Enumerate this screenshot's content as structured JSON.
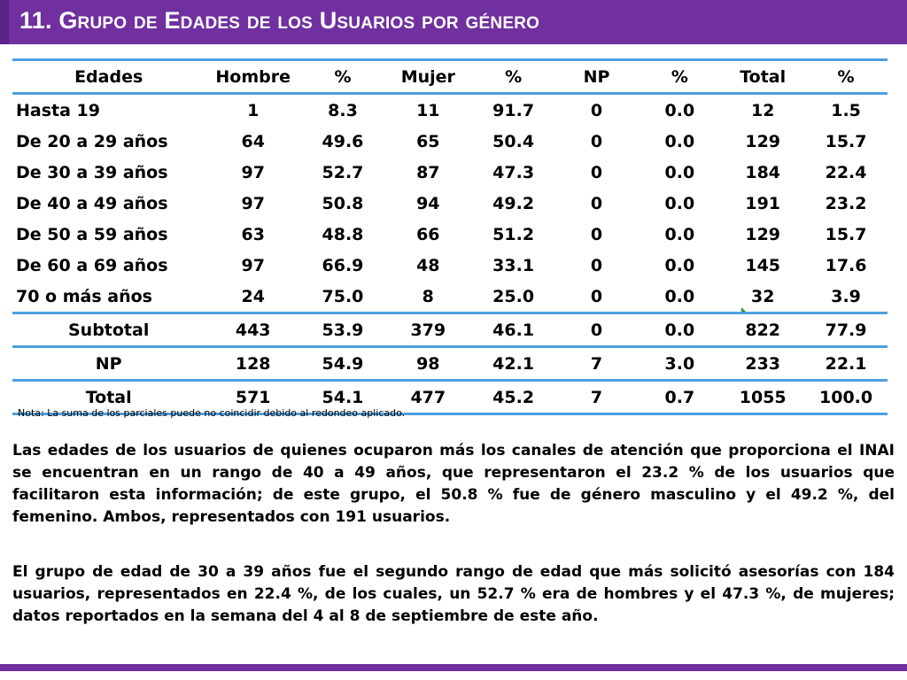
{
  "title": "11. Grupo de  Edades de los Usuarios por género",
  "table": {
    "headers": [
      "Edades",
      "Hombre",
      "%",
      "Mujer",
      "%",
      "NP",
      "%",
      "Total",
      "%"
    ],
    "rows": [
      [
        "Hasta 19",
        "1",
        "8.3",
        "11",
        "91.7",
        "0",
        "0.0",
        "12",
        "1.5"
      ],
      [
        "De 20 a 29 años",
        "64",
        "49.6",
        "65",
        "50.4",
        "0",
        "0.0",
        "129",
        "15.7"
      ],
      [
        "De 30 a 39 años",
        "97",
        "52.7",
        "87",
        "47.3",
        "0",
        "0.0",
        "184",
        "22.4"
      ],
      [
        "De 40 a 49 años",
        "97",
        "50.8",
        "94",
        "49.2",
        "0",
        "0.0",
        "191",
        "23.2"
      ],
      [
        "De 50 a 59 años",
        "63",
        "48.8",
        "66",
        "51.2",
        "0",
        "0.0",
        "129",
        "15.7"
      ],
      [
        "De 60 a 69 años",
        "97",
        "66.9",
        "48",
        "33.1",
        "0",
        "0.0",
        "145",
        "17.6"
      ],
      [
        "70 o más años",
        "24",
        "75.0",
        "8",
        "25.0",
        "0",
        "0.0",
        "32",
        "3.9"
      ]
    ],
    "subtotal": [
      "Subtotal",
      "443",
      "53.9",
      "379",
      "46.1",
      "0",
      "0.0",
      "822",
      "77.9"
    ],
    "np": [
      "NP",
      "128",
      "54.9",
      "98",
      "42.1",
      "7",
      "3.0",
      "233",
      "22.1"
    ],
    "total": [
      "Total",
      "571",
      "54.1",
      "477",
      "45.2",
      "7",
      "0.7",
      "1055",
      "100.0"
    ]
  },
  "note": "Nota: La suma de los parciales puede no coincidir debido al redondeo aplicado.",
  "paragraphs": [
    "Las edades de los usuarios de quienes ocuparon más los canales de atención que proporciona el INAI se encuentran en un rango de 40 a 49 años, que representaron el 23.2 % de los usuarios que facilitaron esta información; de este grupo, el 50.8 % fue de género masculino y el 49.2 %, del femenino. Ambos, representados con 191 usuarios.",
    "El grupo de edad de 30 a 39 años fue el segundo rango de edad que más solicitó asesorías con 184 usuarios, representados en 22.4 %, de los cuales, un 52.7 % era de hombres y el 47.3 %, de mujeres; datos reportados en la semana del 4 al 8 de septiembre de este año."
  ],
  "colors": {
    "purple": "#7030a0",
    "rule_blue": "#4da0e0"
  }
}
